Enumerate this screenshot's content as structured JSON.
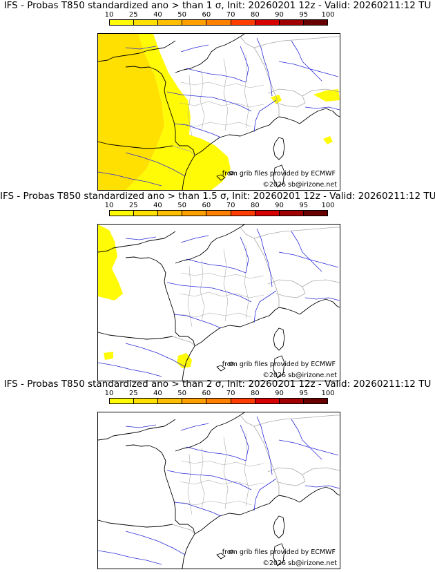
{
  "colorbar": {
    "ticks": [
      "10",
      "25",
      "40",
      "50",
      "60",
      "70",
      "80",
      "90",
      "95",
      "100"
    ],
    "colors": [
      "#fffa05",
      "#ffe000",
      "#ffbf00",
      "#ffa000",
      "#ff7f00",
      "#ff3c00",
      "#d60000",
      "#a10000",
      "#680000"
    ]
  },
  "colors": {
    "coast": "#000000",
    "rivers": "#2a2ad8",
    "borders": "#a8a8a8",
    "class_10_25": "#fffa05",
    "class_25_40": "#ffe000"
  },
  "panels": [
    {
      "title": "IFS - Probas T850  standardized ano > than 1 σ, Init: 20260201 12z - Valid: 20260211:12 TU",
      "source_text": "from grib files provided by ECMWF",
      "copyright": "©2026 sb@irizone.net",
      "probability_coverage": "high"
    },
    {
      "title": "IFS - Probas T850  standardized ano > than 1.5 σ, Init: 20260201 12z - Valid: 20260211:12 TU",
      "source_text": "from grib files provided by ECMWF",
      "copyright": "©2026 sb@irizone.net",
      "probability_coverage": "low"
    },
    {
      "title": "IFS - Probas T850  standardized ano > than 2 σ, Init: 20260201 12z - Valid: 20260211:12 TU",
      "source_text": "from grib files provided by ECMWF",
      "copyright": "©2026 sb@irizone.net",
      "probability_coverage": "none"
    }
  ]
}
